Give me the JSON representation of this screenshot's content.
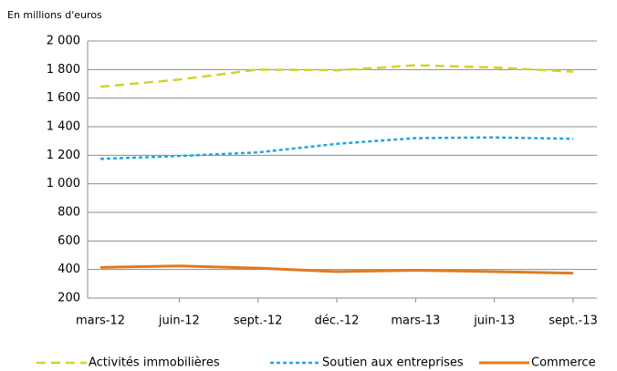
{
  "chart_data": {
    "type": "line",
    "ylabel": "En millions d'euros",
    "categories": [
      "mars-12",
      "juin-12",
      "sept.-12",
      "déc.-12",
      "mars-13",
      "juin-13",
      "sept.-13"
    ],
    "series": [
      {
        "name": "Activités immobilières",
        "color": "#d2d229",
        "dash": "dashed",
        "values": [
          1680,
          1730,
          1800,
          1795,
          1830,
          1815,
          1785
        ]
      },
      {
        "name": "Soutien aux entreprises",
        "color": "#1fa7dc",
        "dash": "dotted",
        "values": [
          1175,
          1195,
          1220,
          1280,
          1320,
          1325,
          1315
        ]
      },
      {
        "name": "Commerce",
        "color": "#e07b1f",
        "dash": "solid",
        "values": [
          415,
          425,
          410,
          385,
          395,
          385,
          375
        ]
      }
    ],
    "ylim": [
      200,
      2000
    ],
    "yticks": [
      {
        "value": 200,
        "label": "200"
      },
      {
        "value": 400,
        "label": "400"
      },
      {
        "value": 600,
        "label": "600"
      },
      {
        "value": 800,
        "label": "800"
      },
      {
        "value": 1000,
        "label": "1 000"
      },
      {
        "value": 1200,
        "label": "1 200"
      },
      {
        "value": 1400,
        "label": "1 400"
      },
      {
        "value": 1600,
        "label": "1 600"
      },
      {
        "value": 1800,
        "label": "1 800"
      },
      {
        "value": 2000,
        "label": "2 000"
      }
    ],
    "grid": true,
    "legend": "bottom"
  }
}
